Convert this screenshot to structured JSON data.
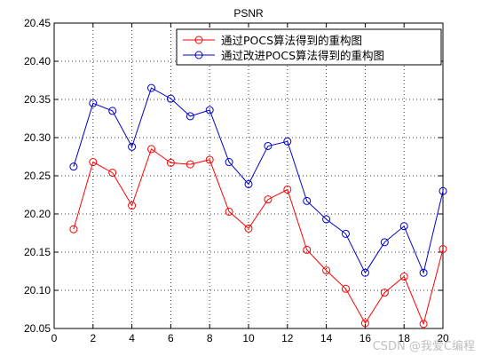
{
  "chart_data": {
    "type": "line",
    "title": "PSNR",
    "xlabel": "",
    "ylabel": "",
    "xlim": [
      0,
      20
    ],
    "ylim": [
      20.05,
      20.45
    ],
    "x_ticks": [
      0,
      2,
      4,
      6,
      8,
      10,
      12,
      14,
      16,
      18,
      20
    ],
    "y_ticks": [
      20.05,
      20.1,
      20.15,
      20.2,
      20.25,
      20.3,
      20.35,
      20.4,
      20.45
    ],
    "grid": true,
    "legend_position": "top-right",
    "x": [
      1,
      2,
      3,
      4,
      5,
      6,
      7,
      8,
      9,
      10,
      11,
      12,
      13,
      14,
      15,
      16,
      17,
      18,
      19,
      20
    ],
    "series": [
      {
        "name": "通过POCS算法得到的重构图",
        "color": "#ff0000",
        "marker": "circle",
        "values": [
          20.18,
          20.268,
          20.254,
          20.211,
          20.285,
          20.267,
          20.265,
          20.271,
          20.203,
          20.181,
          20.219,
          20.232,
          20.153,
          20.126,
          20.102,
          20.057,
          20.097,
          20.118,
          20.056,
          20.154
        ]
      },
      {
        "name": "通过改进POCS算法得到的重构图",
        "color": "#0000cc",
        "marker": "circle",
        "values": [
          20.262,
          20.345,
          20.335,
          20.288,
          20.365,
          20.351,
          20.328,
          20.336,
          20.268,
          20.239,
          20.289,
          20.295,
          20.217,
          20.193,
          20.174,
          20.123,
          20.163,
          20.184,
          20.123,
          20.23
        ]
      }
    ]
  },
  "watermark": "CSDN @我爱C编程"
}
